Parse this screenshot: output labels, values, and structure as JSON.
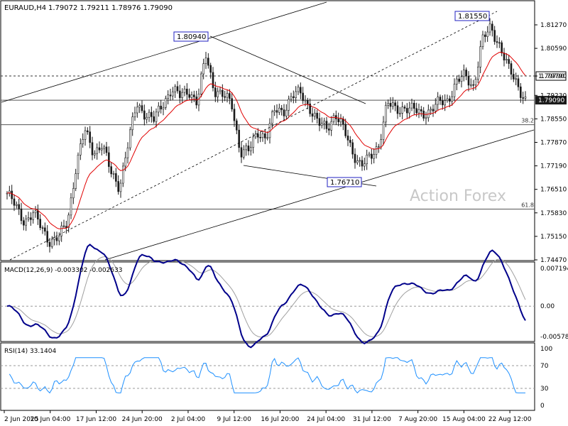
{
  "header": {
    "symbol": "EURAUD,H4",
    "ohlc": "1.79072 1.79211 1.78976 1.79090"
  },
  "watermark": "Action Forex",
  "colors": {
    "candle": "#1a1a1a",
    "ema": "#e00000",
    "macd_main": "#00008b",
    "macd_signal": "#a0a0a0",
    "rsi": "#1e90ff",
    "current_price_bg": "#1a1a1a",
    "label_box": "#2020c0"
  },
  "chart_data": [
    {
      "type": "candlestick",
      "name": "price",
      "ylim": [
        1.7447,
        1.8127
      ],
      "yticks": [
        "1.81270",
        "1.80590",
        "1.79790",
        "1.79230",
        "1.78550",
        "1.77870",
        "1.77190",
        "1.76510",
        "1.75830",
        "1.75150",
        "1.74470"
      ],
      "current_price": "1.79090",
      "hlines": [
        {
          "value": 1.7979,
          "style": "dashed",
          "label": "1.79790"
        },
        {
          "value": 1.7838,
          "style": "solid",
          "label": "38.2"
        },
        {
          "value": 1.7594,
          "style": "solid",
          "label": "61.8"
        },
        {
          "value": 1.7909,
          "style": "solid",
          "label": ""
        }
      ],
      "annotations": [
        {
          "text": "1.80940",
          "x": "3 Jul",
          "y": 1.8094
        },
        {
          "text": "1.81550",
          "x": "22 Aug",
          "y": 1.8155
        },
        {
          "text": "1.76710",
          "x": "31 Jul",
          "y": 1.7671
        }
      ],
      "close_path": [
        [
          "2 Jun 00:00",
          1.764
        ],
        [
          "3 Jun 00:00",
          1.76
        ],
        [
          "4 Jun 00:00",
          1.756
        ],
        [
          "5 Jun 00:00",
          1.758
        ],
        [
          "6 Jun 00:00",
          1.754
        ],
        [
          "9 Jun 00:00",
          1.75
        ],
        [
          "10 Jun 00:00",
          1.751
        ],
        [
          "11 Jun 00:00",
          1.756
        ],
        [
          "12 Jun 00:00",
          1.772
        ],
        [
          "13 Jun 00:00",
          1.782
        ],
        [
          "16 Jun 00:00",
          1.776
        ],
        [
          "17 Jun 00:00",
          1.778
        ],
        [
          "18 Jun 00:00",
          1.77
        ],
        [
          "19 Jun 00:00",
          1.766
        ],
        [
          "20 Jun 00:00",
          1.778
        ],
        [
          "23 Jun 00:00",
          1.79
        ],
        [
          "24 Jun 00:00",
          1.787
        ],
        [
          "25 Jun 00:00",
          1.785
        ],
        [
          "26 Jun 00:00",
          1.79
        ],
        [
          "27 Jun 00:00",
          1.794
        ],
        [
          "30 Jun 00:00",
          1.792
        ],
        [
          "1 Jul 00:00",
          1.794
        ],
        [
          "2 Jul 00:00",
          1.79
        ],
        [
          "3 Jul 00:00",
          1.804
        ],
        [
          "4 Jul 00:00",
          1.794
        ],
        [
          "7 Jul 00:00",
          1.792
        ],
        [
          "8 Jul 00:00",
          1.79
        ],
        [
          "9 Jul 00:00",
          1.776
        ],
        [
          "10 Jul 00:00",
          1.776
        ],
        [
          "11 Jul 00:00",
          1.782
        ],
        [
          "14 Jul 00:00",
          1.78
        ],
        [
          "15 Jul 00:00",
          1.788
        ],
        [
          "16 Jul 00:00",
          1.788
        ],
        [
          "17 Jul 00:00",
          1.792
        ],
        [
          "18 Jul 00:00",
          1.793
        ],
        [
          "21 Jul 00:00",
          1.789
        ],
        [
          "22 Jul 00:00",
          1.784
        ],
        [
          "23 Jul 00:00",
          1.783
        ],
        [
          "24 Jul 00:00",
          1.787
        ],
        [
          "25 Jul 00:00",
          1.782
        ],
        [
          "28 Jul 00:00",
          1.776
        ],
        [
          "29 Jul 00:00",
          1.772
        ],
        [
          "30 Jul 00:00",
          1.774
        ],
        [
          "31 Jul 00:00",
          1.778
        ],
        [
          "1 Aug 00:00",
          1.79
        ],
        [
          "4 Aug 00:00",
          1.788
        ],
        [
          "5 Aug 00:00",
          1.789
        ],
        [
          "6 Aug 00:00",
          1.788
        ],
        [
          "7 Aug 00:00",
          1.787
        ],
        [
          "8 Aug 00:00",
          1.788
        ],
        [
          "11 Aug 00:00",
          1.79
        ],
        [
          "12 Aug 00:00",
          1.791
        ],
        [
          "13 Aug 00:00",
          1.796
        ],
        [
          "14 Aug 00:00",
          1.798
        ],
        [
          "15 Aug 00:00",
          1.795
        ],
        [
          "18 Aug 00:00",
          1.808
        ],
        [
          "19 Aug 00:00",
          1.812
        ],
        [
          "20 Aug 00:00",
          1.807
        ],
        [
          "21 Aug 00:00",
          1.8
        ],
        [
          "22 Aug 00:00",
          1.796
        ],
        [
          "25 Aug 00:00",
          1.7909
        ]
      ]
    },
    {
      "type": "line",
      "name": "MACD",
      "title": "MACD(12,26,9) -0.003302 -0.002633",
      "ylim": [
        -0.005784,
        0.007194
      ],
      "yticks": [
        "0.007194",
        "0.00",
        "-0.005784"
      ]
    },
    {
      "type": "line",
      "name": "RSI",
      "title": "RSI(14) 33.1404",
      "ylim": [
        0,
        100
      ],
      "yticks": [
        "100",
        "70",
        "30",
        "0"
      ],
      "levels": [
        70,
        30
      ]
    }
  ],
  "x_axis": {
    "labels": [
      "2 Jun 2025",
      "10 Jun 04:00",
      "17 Jun 12:00",
      "24 Jun 20:00",
      "2 Jul 04:00",
      "9 Jul 12:00",
      "16 Jul 20:00",
      "24 Jul 04:00",
      "31 Jul 12:00",
      "7 Aug 20:00",
      "15 Aug 04:00",
      "22 Aug 12:00"
    ]
  }
}
